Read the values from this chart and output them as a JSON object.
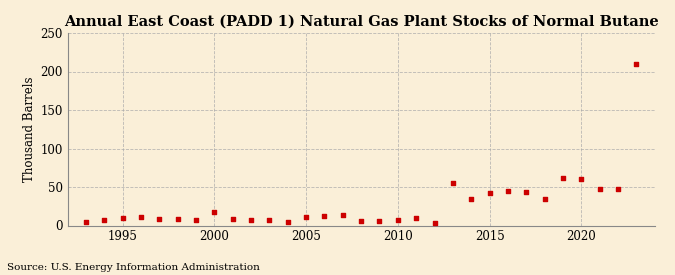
{
  "title": "Annual East Coast (PADD 1) Natural Gas Plant Stocks of Normal Butane",
  "ylabel": "Thousand Barrels",
  "source": "Source: U.S. Energy Information Administration",
  "background_color": "#faefd8",
  "plot_bg_color": "#faefd8",
  "marker_color": "#cc0000",
  "years": [
    1993,
    1994,
    1995,
    1996,
    1997,
    1998,
    1999,
    2000,
    2001,
    2002,
    2003,
    2004,
    2005,
    2006,
    2007,
    2008,
    2009,
    2010,
    2011,
    2012,
    2013,
    2014,
    2015,
    2016,
    2017,
    2018,
    2019,
    2020,
    2021,
    2022,
    2023
  ],
  "values": [
    5,
    7,
    10,
    11,
    9,
    8,
    7,
    18,
    8,
    7,
    7,
    4,
    11,
    12,
    13,
    6,
    6,
    7,
    10,
    3,
    55,
    35,
    42,
    45,
    43,
    35,
    62,
    61,
    48,
    48,
    210
  ],
  "xlim": [
    1992,
    2024
  ],
  "ylim": [
    0,
    250
  ],
  "yticks": [
    0,
    50,
    100,
    150,
    200,
    250
  ],
  "xticks": [
    1995,
    2000,
    2005,
    2010,
    2015,
    2020
  ],
  "grid_color": "#aaaaaa",
  "title_fontsize": 10.5,
  "axis_fontsize": 8.5,
  "source_fontsize": 7.5
}
